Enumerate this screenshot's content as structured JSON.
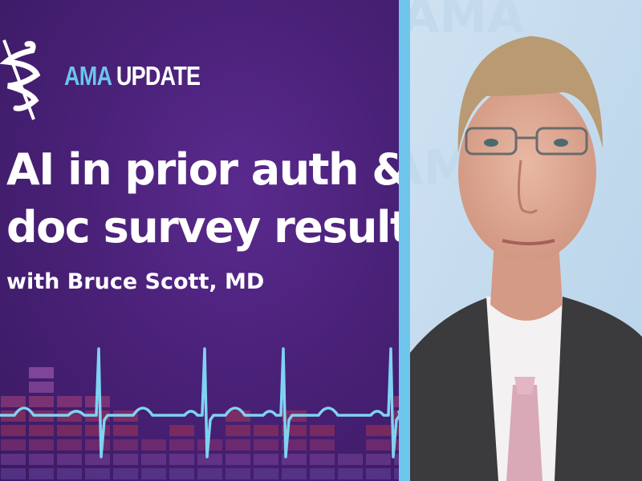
{
  "brand": {
    "prefix": "AMA",
    "suffix": "UPDATE",
    "accent_color": "#6cc4ec"
  },
  "episode": {
    "title_line1": "AI in prior auth &",
    "title_line2": "doc survey results",
    "guest": "with Bruce Scott, MD"
  },
  "photo": {
    "backdrop_watermark": "AMA"
  },
  "colors": {
    "background": "#4a2178",
    "divider": "#6ec6ec",
    "ecg_line": "#7fd3f2"
  }
}
